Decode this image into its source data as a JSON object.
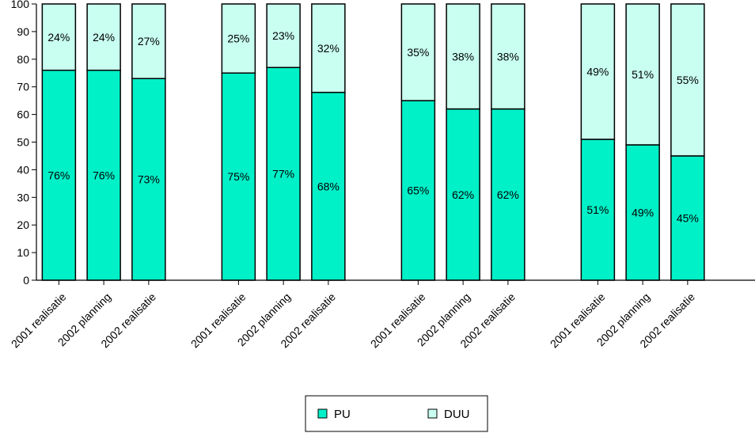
{
  "chart_data": {
    "type": "bar",
    "stacked": true,
    "categories": [
      "2001 realisatie",
      "2002 planning",
      "2002 realisatie",
      "2001 realisatie",
      "2002 planning",
      "2002 realisatie",
      "2001 realisatie",
      "2002 planning",
      "2002 realisatie",
      "2001 realisatie",
      "2002 planning",
      "2002 realisatie"
    ],
    "groups": 4,
    "per_group": 3,
    "series": [
      {
        "name": "PU",
        "color": "#00f0c8",
        "values": [
          76,
          76,
          73,
          75,
          77,
          68,
          65,
          62,
          62,
          51,
          49,
          45
        ],
        "labels": [
          "76%",
          "76%",
          "73%",
          "75%",
          "77%",
          "68%",
          "65%",
          "62%",
          "62%",
          "51%",
          "49%",
          "45%"
        ]
      },
      {
        "name": "DUU",
        "color": "#c8fff0",
        "values": [
          24,
          24,
          27,
          25,
          23,
          32,
          35,
          38,
          38,
          49,
          51,
          55
        ],
        "labels": [
          "24%",
          "24%",
          "27%",
          "25%",
          "23%",
          "32%",
          "35%",
          "38%",
          "38%",
          "49%",
          "51%",
          "55%"
        ]
      }
    ],
    "ylim": [
      0,
      100
    ],
    "yticks": [
      0,
      10,
      20,
      30,
      40,
      50,
      60,
      70,
      80,
      90,
      100
    ],
    "ytick_labels": [
      "0",
      "10",
      "20",
      "30",
      "40",
      "50",
      "60",
      "70",
      "80",
      "90",
      "100"
    ],
    "title": "",
    "xlabel": "",
    "ylabel": "",
    "grid": false,
    "legend_position": "bottom-center"
  }
}
